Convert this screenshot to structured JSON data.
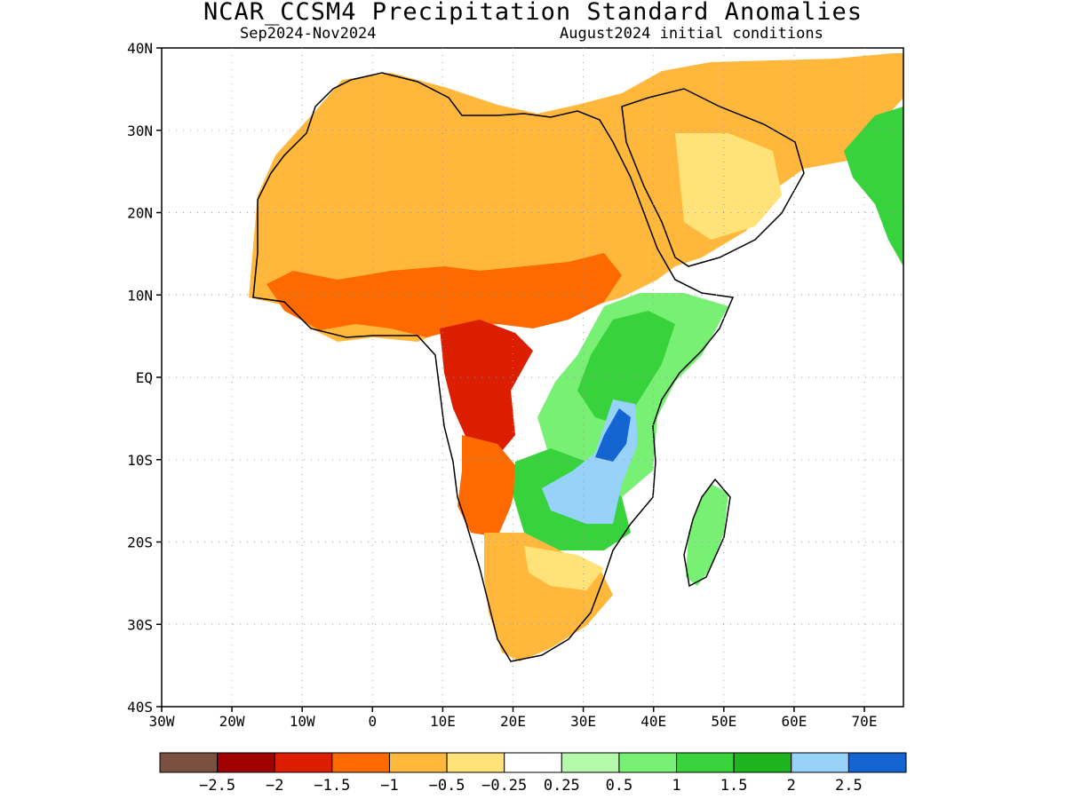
{
  "header": {
    "title": "NCAR_CCSM4 Precipitation Standard Anomalies",
    "period": "Sep2024-Nov2024",
    "init": "August2024 initial conditions"
  },
  "axes": {
    "lat_labels": [
      "40N",
      "30N",
      "20N",
      "10N",
      "EQ",
      "10S",
      "20S",
      "30S",
      "40S"
    ],
    "lon_labels": [
      "30W",
      "20W",
      "10W",
      "0",
      "10E",
      "20E",
      "30E",
      "40E",
      "50E",
      "60E",
      "70E"
    ]
  },
  "legend": {
    "colors": [
      "#7a5040",
      "#a00000",
      "#dc1e00",
      "#ff6a00",
      "#ffb83c",
      "#ffe278",
      "#ffffff",
      "#b4faaa",
      "#78f073",
      "#37d23c",
      "#1eb41e",
      "#96d2fa",
      "#1464d2"
    ],
    "labels": [
      "−2.5",
      "−2",
      "−1.5",
      "−1",
      "−0.5",
      "−0.25",
      "0.25",
      "0.5",
      "1",
      "1.5",
      "2",
      "2.5"
    ]
  }
}
